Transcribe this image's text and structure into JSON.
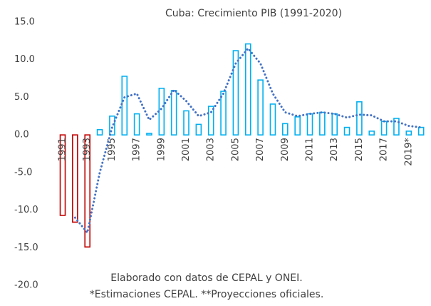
{
  "chart_data": {
    "type": "bar",
    "title": "Cuba: Crecimiento PIB (1991-2020)",
    "categories": [
      "1991",
      null,
      "1993",
      null,
      "1995",
      null,
      "1997",
      null,
      "1999",
      null,
      "2001",
      null,
      "2003",
      null,
      "2005",
      null,
      "2007",
      null,
      "2009",
      null,
      "2011",
      null,
      "2013",
      null,
      "2015",
      null,
      "2017",
      null,
      "2019*",
      null
    ],
    "values": [
      -10.7,
      -11.6,
      -14.9,
      0.7,
      2.5,
      7.8,
      2.8,
      0.2,
      6.2,
      5.9,
      3.2,
      1.4,
      3.8,
      5.8,
      11.2,
      12.1,
      7.3,
      4.1,
      1.5,
      2.4,
      2.8,
      3.0,
      2.8,
      1.0,
      4.4,
      0.5,
      1.8,
      2.2,
      0.5,
      1.0
    ],
    "positive_color": "#00b0f0",
    "negative_color": "#c00000",
    "trend": {
      "color": "#4472c4",
      "values": [
        null,
        -11,
        -13,
        -5,
        1,
        5,
        5.5,
        2,
        3.5,
        6,
        4.5,
        2.5,
        3,
        5.5,
        9.5,
        11.5,
        9.5,
        5.5,
        3,
        2.5,
        2.8,
        3,
        2.8,
        2.3,
        2.7,
        2.6,
        1.8,
        1.8,
        1.2,
        1.0
      ]
    },
    "ylim": [
      -20,
      15
    ],
    "yticks": [
      {
        "value": 15,
        "label": "15.0"
      },
      {
        "value": 10,
        "label": "10.0"
      },
      {
        "value": 5,
        "label": "5.0"
      },
      {
        "value": 0,
        "label": "0.0"
      },
      {
        "value": -5,
        "label": "-5.0"
      },
      {
        "value": -10,
        "label": "-10.0"
      },
      {
        "value": -15,
        "label": "-15.0"
      },
      {
        "value": -20,
        "label": "-20.0"
      }
    ],
    "notes": [
      "Elaborado con datos de CEPAL y ONEI.",
      "*Estimaciones CEPAL. **Proyecciones oficiales."
    ]
  }
}
